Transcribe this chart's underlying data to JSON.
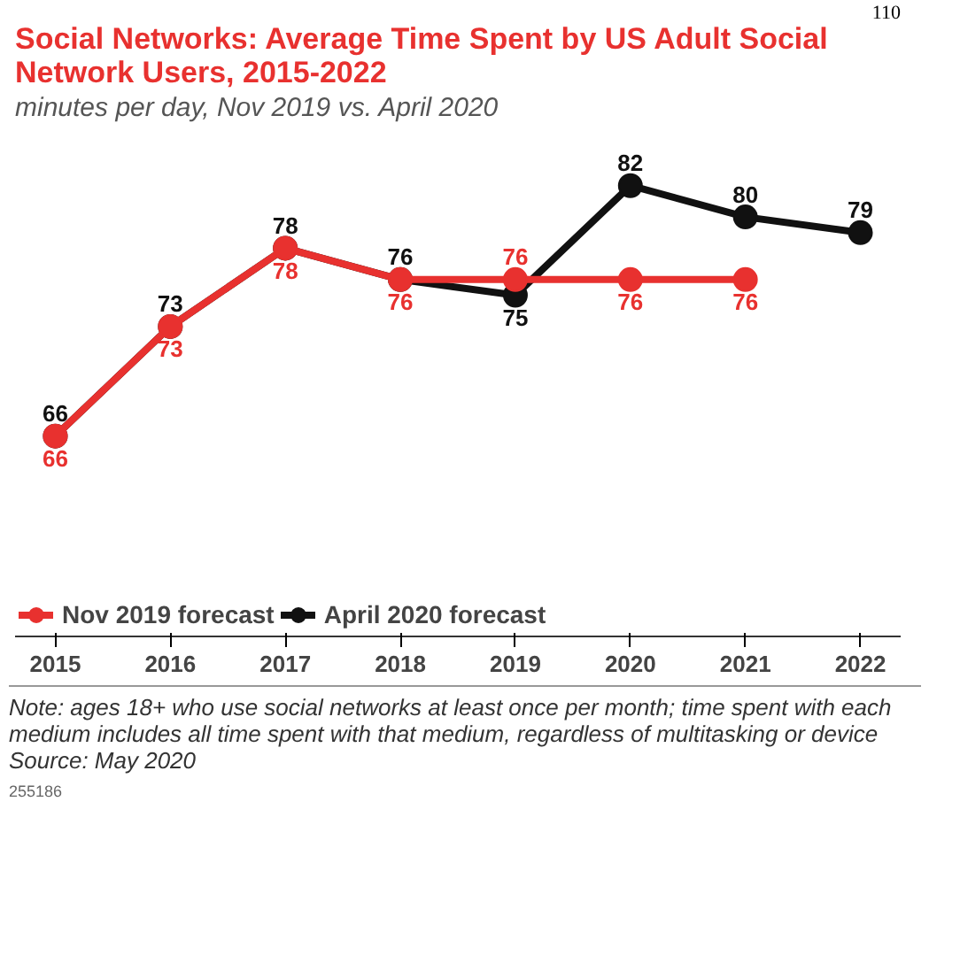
{
  "chart_data": {
    "type": "line",
    "title": "Social Networks: Average Time Spent by US Adult Social Network Users, 2015-2022",
    "subtitle": "minutes per day, Nov 2019 vs. April 2020",
    "categories": [
      "2015",
      "2016",
      "2017",
      "2018",
      "2019",
      "2020",
      "2021",
      "2022"
    ],
    "series": [
      {
        "name": "Nov 2019 forecast",
        "color": "#e8312f",
        "values": [
          66,
          73,
          78,
          76,
          76,
          76,
          76,
          null
        ]
      },
      {
        "name": "April 2020 forecast",
        "color": "#111111",
        "values": [
          66,
          73,
          78,
          76,
          75,
          82,
          80,
          79
        ]
      }
    ],
    "data_labels": true,
    "marker": "circle",
    "legend": "bottom",
    "grid": false,
    "tick_labels": "x",
    "annotations": [
      "110",
      "Note: ages 18+ who use social networks at least once per month; time spent with each medium includes all time spent with that medium, regardless of multitasking or device",
      "Source: May 2020",
      "255186"
    ]
  }
}
